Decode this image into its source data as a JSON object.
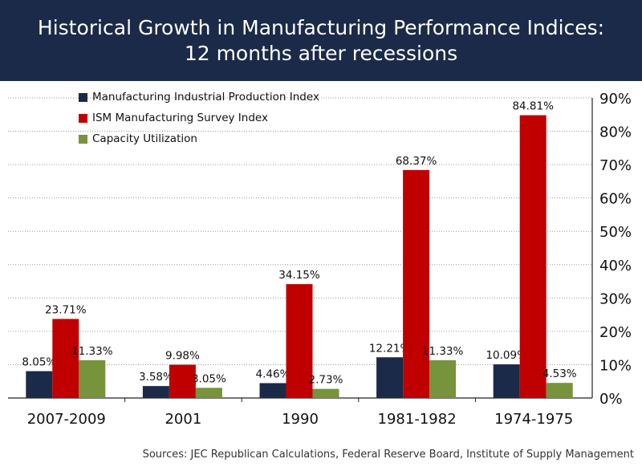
{
  "header": {
    "title_line1": "Historical Growth in Manufacturing Performance Indices:",
    "title_line2": "12 months after recessions"
  },
  "source": "Sources: JEC Republican Calculations, Federal Reserve Board, Institute of Supply Management",
  "chart_data": {
    "type": "bar",
    "title": "Historical Growth in Manufacturing Performance Indices: 12 months after recessions",
    "xlabel": "",
    "ylabel": "",
    "categories": [
      "2007-2009",
      "2001",
      "1990",
      "1981-1982",
      "1974-1975"
    ],
    "series": [
      {
        "name": "Manufacturing Industrial Production Index",
        "color": "#1b2a48",
        "values": [
          8.05,
          3.58,
          4.46,
          12.21,
          10.09
        ],
        "labels": [
          "8.05%",
          "3.58%",
          "4.46%",
          "12.21%",
          "10.09%"
        ]
      },
      {
        "name": "ISM Manufacturing Survey Index",
        "color": "#c00000",
        "values": [
          23.71,
          9.98,
          34.15,
          68.37,
          84.81
        ],
        "labels": [
          "23.71%",
          "9.98%",
          "34.15%",
          "68.37%",
          "84.81%"
        ]
      },
      {
        "name": "Capacity Utilization",
        "color": "#77933c",
        "values": [
          11.33,
          3.05,
          2.73,
          11.33,
          4.53
        ],
        "labels": [
          "11.33%",
          "3.05%",
          "2.73%",
          "11.33%",
          "4.53%"
        ]
      }
    ],
    "ylim": [
      0,
      90
    ],
    "yticks": [
      0,
      10,
      20,
      30,
      40,
      50,
      60,
      70,
      80,
      90
    ],
    "ytick_labels": [
      "0%",
      "10%",
      "20%",
      "30%",
      "40%",
      "50%",
      "60%",
      "70%",
      "80%",
      "90%"
    ],
    "y_axis_side": "right",
    "grid": true,
    "legend_position": "top-left"
  }
}
